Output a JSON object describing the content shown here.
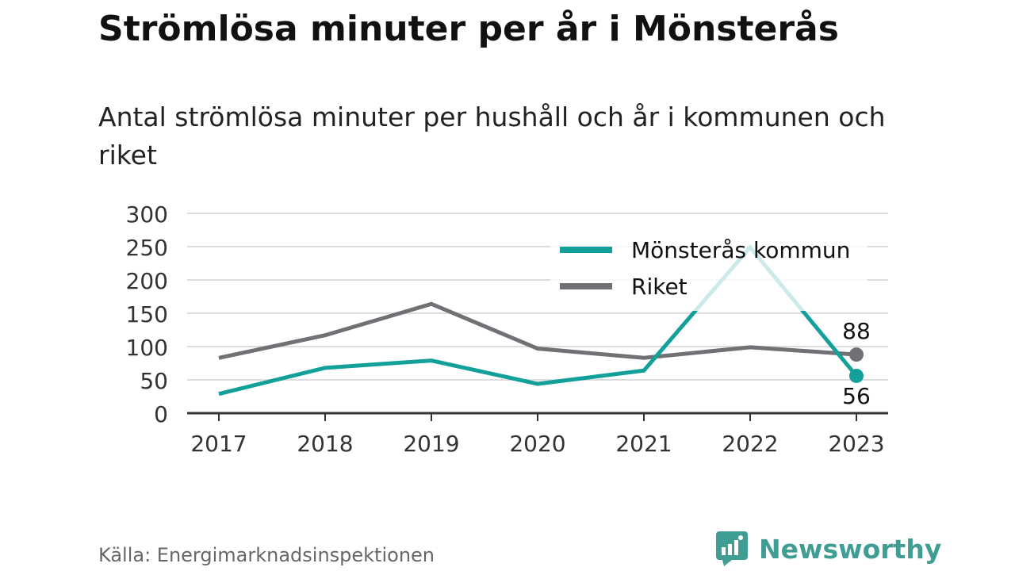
{
  "title": "Strömlösa minuter per år i Mönsterås",
  "subtitle": "Antal strömlösa minuter per hushåll och år i kommunen och riket",
  "source": "Källa: Energimarknadsinspektionen",
  "brand": {
    "name": "Newsworthy",
    "icon": "newsworthy-logo-icon",
    "color": "#3f9d93"
  },
  "chart_data": {
    "type": "line",
    "categories": [
      "2017",
      "2018",
      "2019",
      "2020",
      "2021",
      "2022",
      "2023"
    ],
    "ylim": [
      0,
      300
    ],
    "yticks": [
      0,
      50,
      100,
      150,
      200,
      250,
      300
    ],
    "grid": true,
    "legend_position": "top-right",
    "series": [
      {
        "name": "Mönsterås kommun",
        "color": "#14a09a",
        "values": [
          29,
          68,
          79,
          44,
          64,
          249,
          56
        ],
        "end_label": "56"
      },
      {
        "name": "Riket",
        "color": "#707075",
        "values": [
          83,
          117,
          164,
          97,
          83,
          99,
          88
        ],
        "end_label": "88"
      }
    ]
  }
}
